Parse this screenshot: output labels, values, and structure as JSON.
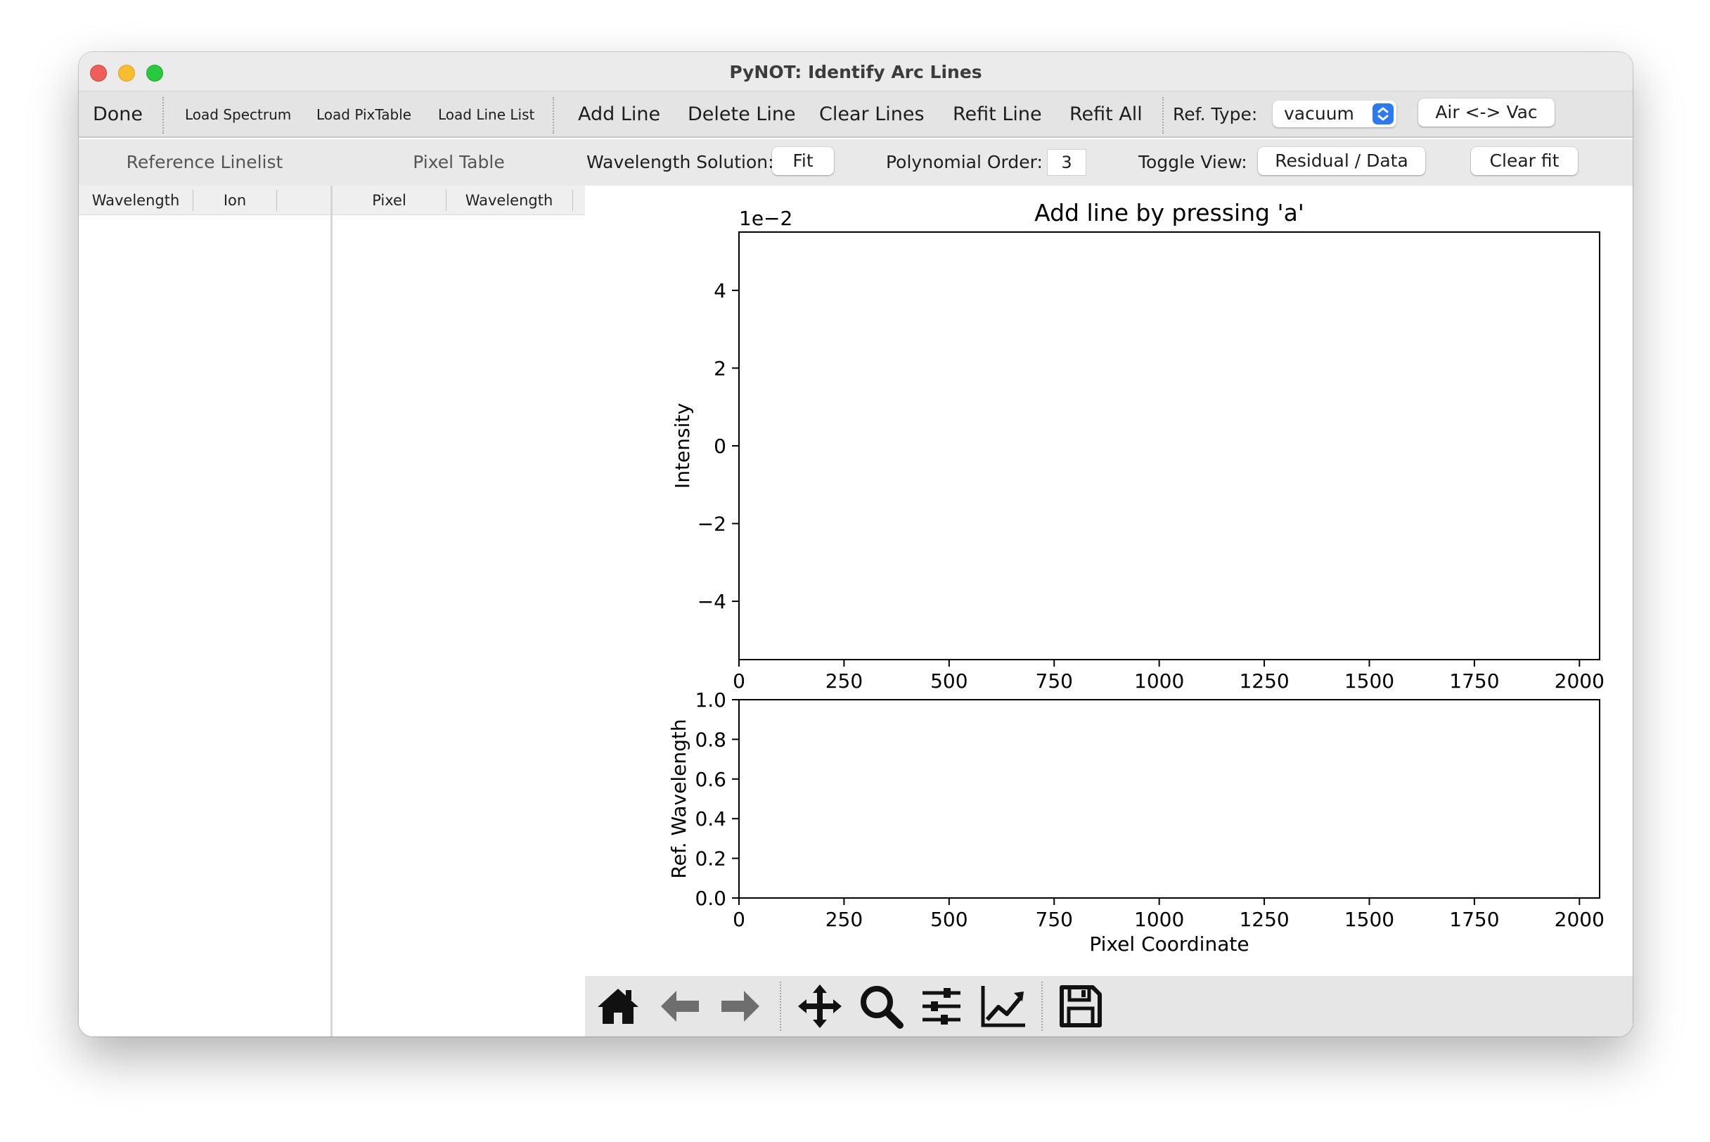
{
  "window": {
    "title": "PyNOT: Identify Arc Lines"
  },
  "toolbar": {
    "done": "Done",
    "load_spectrum": "Load Spectrum",
    "load_pixtable": "Load PixTable",
    "load_linelist": "Load Line List",
    "add_line": "Add Line",
    "delete_line": "Delete Line",
    "clear_lines": "Clear Lines",
    "refit_line": "Refit Line",
    "refit_all": "Refit All",
    "ref_type_label": "Ref. Type:",
    "ref_type_value": "vacuum",
    "air_vac": "Air <-> Vac"
  },
  "options": {
    "reference_linelist": "Reference Linelist",
    "pixel_table": "Pixel Table",
    "wavelength_solution_label": "Wavelength Solution:",
    "fit_button": "Fit",
    "polynomial_order_label": "Polynomial Order:",
    "polynomial_order_value": "3",
    "toggle_view_label": "Toggle View:",
    "toggle_view_button": "Residual / Data",
    "clear_fit_button": "Clear fit"
  },
  "reference_table": {
    "columns": [
      "Wavelength",
      "Ion"
    ],
    "rows": []
  },
  "pixel_table": {
    "columns": [
      "Pixel",
      "Wavelength"
    ],
    "rows": []
  },
  "chart_data": [
    {
      "type": "line",
      "title": "Add line by pressing 'a'",
      "ylabel": "Intensity",
      "xlabel": "",
      "offset_text": "1e−2",
      "xlim": [
        0,
        2048
      ],
      "ylim": [
        -5.5,
        5.5
      ],
      "xticks": [
        0,
        250,
        500,
        750,
        1000,
        1250,
        1500,
        1750,
        2000
      ],
      "yticks": [
        4,
        2,
        0,
        -2,
        -4
      ],
      "ytick_labels": [
        "4",
        "2",
        "0",
        "−2",
        "−4"
      ],
      "series": []
    },
    {
      "type": "scatter",
      "title": "",
      "ylabel": "Ref. Wavelength",
      "xlabel": "Pixel Coordinate",
      "xlim": [
        0,
        2048
      ],
      "ylim": [
        0.0,
        1.0
      ],
      "xticks": [
        0,
        250,
        500,
        750,
        1000,
        1250,
        1500,
        1750,
        2000
      ],
      "yticks": [
        0.0,
        0.2,
        0.4,
        0.6,
        0.8,
        1.0
      ],
      "ytick_labels": [
        "0.0",
        "0.2",
        "0.4",
        "0.6",
        "0.8",
        "1.0"
      ],
      "series": []
    }
  ],
  "navbar": {
    "icons": [
      "home-icon",
      "back-icon",
      "forward-icon",
      "pan-icon",
      "zoom-icon",
      "configure-subplots-icon",
      "edit-axis-icon",
      "save-icon"
    ]
  }
}
